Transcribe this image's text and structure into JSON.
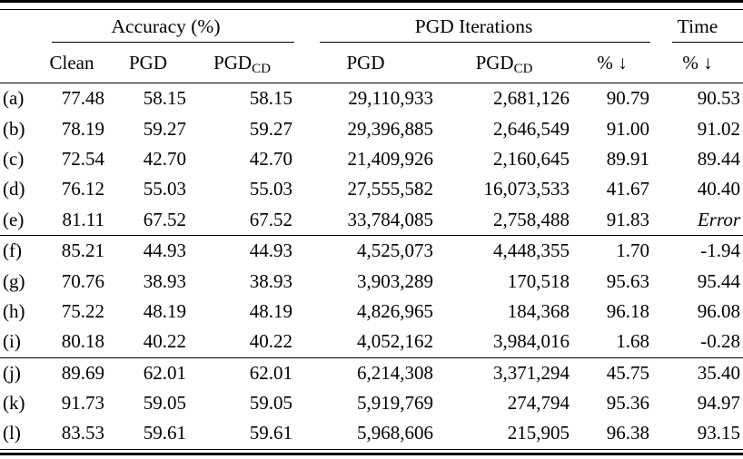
{
  "colors": {
    "text": "#000000",
    "background": "#ffffff",
    "rule": "#000000"
  },
  "table": {
    "group_headers": {
      "accuracy": "Accuracy (%)",
      "iterations": "PGD Iterations",
      "time": "Time"
    },
    "column_headers": {
      "clean": "Clean",
      "pgd": "PGD",
      "pgd_cd_base": "PGD",
      "pgd_cd_sub": "CD",
      "pct_down": "% ↓"
    },
    "sections": [
      {
        "rows": [
          {
            "cells": [
              "(a)",
              "77.48",
              "58.15",
              "58.15",
              "29,110,933",
              "2,681,126",
              "90.79",
              "90.53"
            ]
          },
          {
            "cells": [
              "(b)",
              "78.19",
              "59.27",
              "59.27",
              "29,396,885",
              "2,646,549",
              "91.00",
              "91.02"
            ]
          },
          {
            "cells": [
              "(c)",
              "72.54",
              "42.70",
              "42.70",
              "21,409,926",
              "2,160,645",
              "89.91",
              "89.44"
            ]
          },
          {
            "cells": [
              "(d)",
              "76.12",
              "55.03",
              "55.03",
              "27,555,582",
              "16,073,533",
              "41.67",
              "40.40"
            ]
          },
          {
            "cells": [
              "(e)",
              "81.11",
              "67.52",
              "67.52",
              "33,784,085",
              "2,758,488",
              "91.83",
              "Error"
            ]
          }
        ]
      },
      {
        "rows": [
          {
            "cells": [
              "(f)",
              "85.21",
              "44.93",
              "44.93",
              "4,525,073",
              "4,448,355",
              "1.70",
              "-1.94"
            ]
          },
          {
            "cells": [
              "(g)",
              "70.76",
              "38.93",
              "38.93",
              "3,903,289",
              "170,518",
              "95.63",
              "95.44"
            ]
          },
          {
            "cells": [
              "(h)",
              "75.22",
              "48.19",
              "48.19",
              "4,826,965",
              "184,368",
              "96.18",
              "96.08"
            ]
          },
          {
            "cells": [
              "(i)",
              "80.18",
              "40.22",
              "40.22",
              "4,052,162",
              "3,984,016",
              "1.68",
              "-0.28"
            ]
          }
        ]
      },
      {
        "rows": [
          {
            "cells": [
              "(j)",
              "89.69",
              "62.01",
              "62.01",
              "6,214,308",
              "3,371,294",
              "45.75",
              "35.40"
            ]
          },
          {
            "cells": [
              "(k)",
              "91.73",
              "59.05",
              "59.05",
              "5,919,769",
              "274,794",
              "95.36",
              "94.97"
            ]
          },
          {
            "cells": [
              "(l)",
              "83.53",
              "59.61",
              "59.61",
              "5,968,606",
              "215,905",
              "96.38",
              "93.15"
            ]
          }
        ]
      }
    ]
  }
}
